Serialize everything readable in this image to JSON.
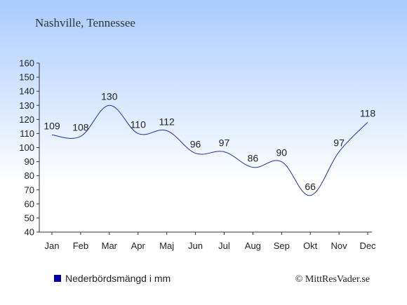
{
  "header": {
    "location": "Nashville, Tennessee"
  },
  "legend": {
    "label": "Nederbördsmängd i mm",
    "marker_color": "#0000aa"
  },
  "footer": {
    "copyright": "© MittResVader.se"
  },
  "colors": {
    "background_top": "#a9cbff",
    "background_bottom": "#ffffff",
    "line": "#1c32a0",
    "axis": "#333333",
    "text": "#222222"
  },
  "chart_data": {
    "type": "line",
    "categories": [
      "Jan",
      "Feb",
      "Mar",
      "Apr",
      "Maj",
      "Jun",
      "Jul",
      "Aug",
      "Sep",
      "Okt",
      "Nov",
      "Dec"
    ],
    "series": [
      {
        "values": [
          109,
          108,
          130,
          110,
          112,
          96,
          97,
          86,
          90,
          66,
          97,
          118
        ]
      }
    ],
    "data_labels": [
      "109",
      "108",
      "130",
      "110",
      "112",
      "96",
      "97",
      "86",
      "90",
      "66",
      "97",
      "118"
    ],
    "yticks": [
      40,
      50,
      60,
      70,
      80,
      90,
      100,
      110,
      120,
      130,
      140,
      150,
      160
    ],
    "ylim": [
      40,
      160
    ],
    "grid": false,
    "legend_position": "bottom-left"
  }
}
